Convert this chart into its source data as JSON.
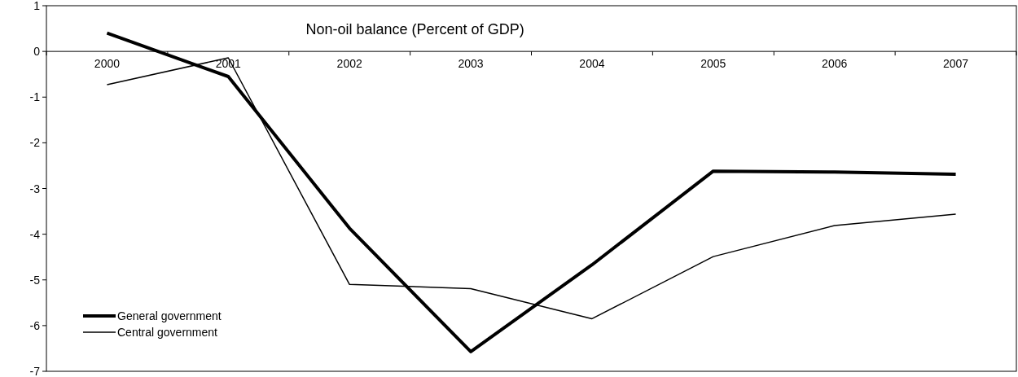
{
  "chart_data": {
    "type": "line",
    "title": "Non-oil balance (Percent of GDP)",
    "categories": [
      "2000",
      "2001",
      "2002",
      "2003",
      "2004",
      "2005",
      "2006",
      "2007"
    ],
    "series": [
      {
        "name": "General government",
        "color": "#000000",
        "values": [
          0.4,
          -0.55,
          -3.87,
          -6.57,
          -4.67,
          -2.62,
          -2.64,
          -2.69
        ]
      },
      {
        "name": "Central government",
        "color": "#000000",
        "values": [
          -0.73,
          -0.14,
          -5.1,
          -5.19,
          -5.85,
          -4.49,
          -3.81,
          -3.56
        ]
      }
    ],
    "ylim": [
      -7,
      1
    ],
    "yticks": [
      -7,
      -6,
      -5,
      -4,
      -3,
      -2,
      -1,
      0,
      1
    ],
    "grid": false,
    "legend": "bottom left",
    "line_style": "solid"
  }
}
